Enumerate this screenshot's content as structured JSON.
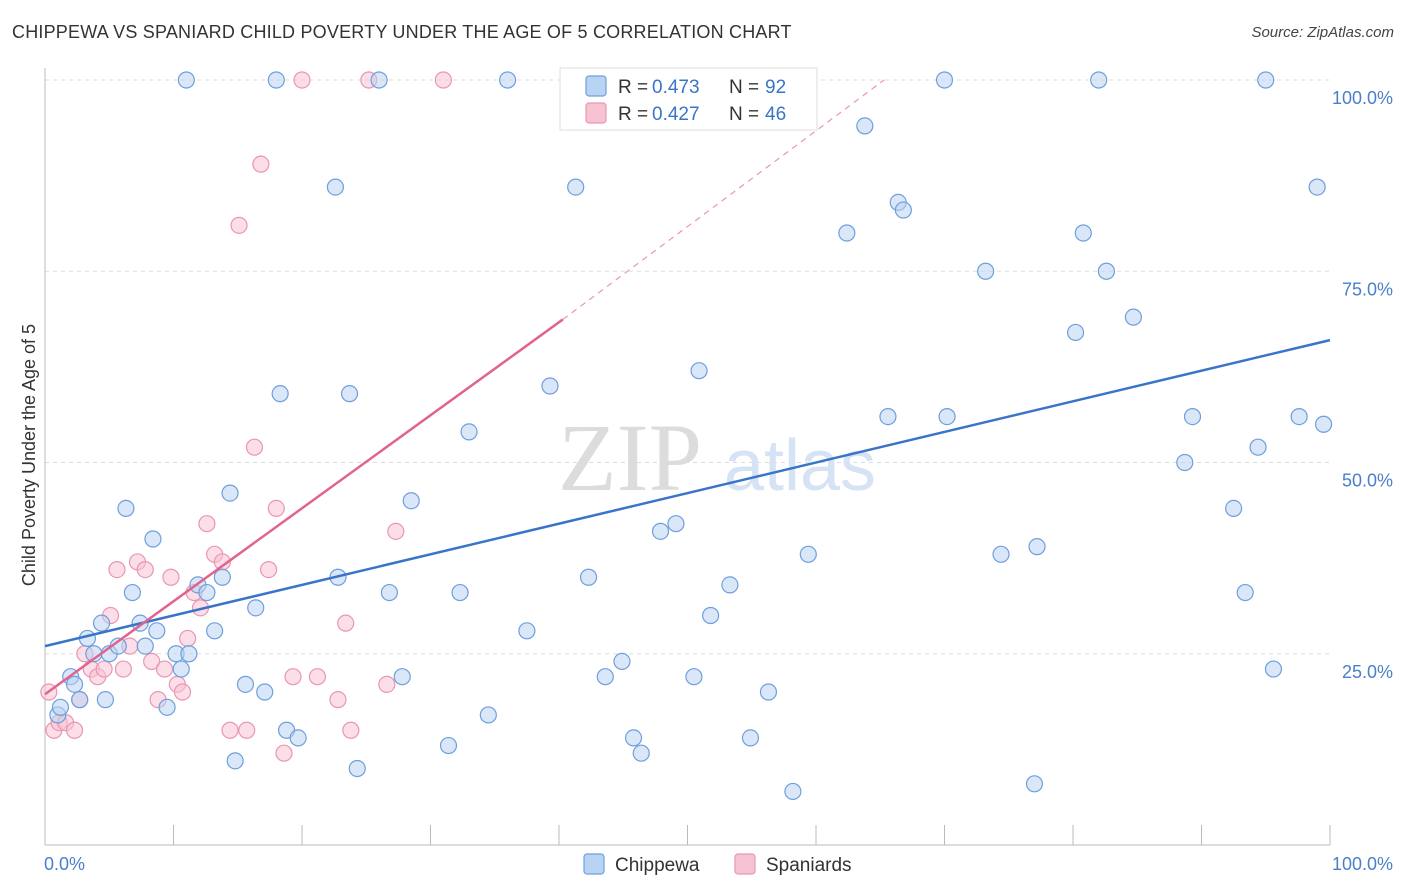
{
  "title": "CHIPPEWA VS SPANIARD CHILD POVERTY UNDER THE AGE OF 5 CORRELATION CHART",
  "source": "Source: ZipAtlas.com",
  "watermark": {
    "zip": "ZIP",
    "atlas": "atlas"
  },
  "legend": {
    "rows": [
      {
        "r_label": "R = ",
        "r_value": "0.473",
        "n_label": "N = ",
        "n_value": "92"
      },
      {
        "r_label": "R = ",
        "r_value": "0.427",
        "n_label": "N = ",
        "n_value": "46"
      }
    ]
  },
  "colors": {
    "chippewa_fill": "#b9d3f2",
    "chippewa_stroke": "#6e9fdc",
    "chippewa_line": "#3a74c9",
    "spaniards_fill": "#f7c3d3",
    "spaniards_stroke": "#e996b2",
    "spaniards_line": "#e0648f",
    "grid": "#dddddd",
    "tick_text": "#4a7fc9"
  },
  "chart_data": {
    "type": "scatter",
    "title": "CHIPPEWA VS SPANIARD CHILD POVERTY UNDER THE AGE OF 5 CORRELATION CHART",
    "xlabel": "",
    "ylabel": "Child Poverty Under the Age of 5",
    "xlim": [
      0,
      100
    ],
    "ylim": [
      0,
      100
    ],
    "x_tick_labels": [
      "0.0%",
      "100.0%"
    ],
    "y_tick_labels": [
      "25.0%",
      "50.0%",
      "75.0%",
      "100.0%"
    ],
    "y_ticks": [
      25,
      50,
      75,
      100
    ],
    "grid": true,
    "legend_position": "top-center",
    "series": [
      {
        "name": "Chippewa",
        "R": 0.473,
        "N": 92,
        "trend": {
          "x": [
            0,
            100
          ],
          "y": [
            26,
            66
          ]
        },
        "points": [
          [
            1,
            17
          ],
          [
            1.2,
            18
          ],
          [
            2,
            22
          ],
          [
            2.3,
            21
          ],
          [
            2.7,
            19
          ],
          [
            3.3,
            27
          ],
          [
            3.8,
            25
          ],
          [
            4.4,
            29
          ],
          [
            4.7,
            19
          ],
          [
            5,
            25
          ],
          [
            5.7,
            26
          ],
          [
            6.3,
            44
          ],
          [
            6.8,
            33
          ],
          [
            7.4,
            29
          ],
          [
            7.8,
            26
          ],
          [
            8.4,
            40
          ],
          [
            8.7,
            28
          ],
          [
            9.5,
            18
          ],
          [
            10.2,
            25
          ],
          [
            10.6,
            23
          ],
          [
            11.2,
            25
          ],
          [
            11.9,
            34
          ],
          [
            12.6,
            33
          ],
          [
            13.2,
            28
          ],
          [
            13.8,
            35
          ],
          [
            14.4,
            46
          ],
          [
            14.8,
            11
          ],
          [
            15.6,
            21
          ],
          [
            16.4,
            31
          ],
          [
            17.1,
            20
          ],
          [
            18.3,
            59
          ],
          [
            18.8,
            15
          ],
          [
            19.7,
            14
          ],
          [
            22.6,
            86
          ],
          [
            22.8,
            35
          ],
          [
            23.7,
            59
          ],
          [
            24.3,
            10
          ],
          [
            26.8,
            33
          ],
          [
            27.8,
            22
          ],
          [
            28.5,
            45
          ],
          [
            31.4,
            13
          ],
          [
            32.3,
            33
          ],
          [
            33,
            54
          ],
          [
            34.5,
            17
          ],
          [
            37.5,
            28
          ],
          [
            39.3,
            60
          ],
          [
            41.3,
            86
          ],
          [
            42.3,
            35
          ],
          [
            43.6,
            22
          ],
          [
            44.9,
            24
          ],
          [
            45.8,
            14
          ],
          [
            46.4,
            12
          ],
          [
            47.9,
            41
          ],
          [
            49.1,
            42
          ],
          [
            50.5,
            22
          ],
          [
            50.9,
            62
          ],
          [
            51.8,
            30
          ],
          [
            53.3,
            34
          ],
          [
            54.9,
            14
          ],
          [
            56.3,
            20
          ],
          [
            58.2,
            7
          ],
          [
            59.4,
            38
          ],
          [
            62.4,
            80
          ],
          [
            63.8,
            94
          ],
          [
            65.6,
            56
          ],
          [
            66.4,
            84
          ],
          [
            66.8,
            83
          ],
          [
            70.2,
            56
          ],
          [
            73.2,
            75
          ],
          [
            74.4,
            38
          ],
          [
            77,
            8
          ],
          [
            77.2,
            39
          ],
          [
            80.2,
            67
          ],
          [
            80.8,
            80
          ],
          [
            82.6,
            75
          ],
          [
            84.7,
            69
          ],
          [
            88.7,
            50
          ],
          [
            89.3,
            56
          ],
          [
            92.5,
            44
          ],
          [
            93.4,
            33
          ],
          [
            94.4,
            52
          ],
          [
            95.6,
            23
          ],
          [
            97.6,
            56
          ],
          [
            99,
            86
          ],
          [
            99.5,
            55
          ],
          [
            11,
            100
          ],
          [
            18,
            100
          ],
          [
            26,
            100
          ],
          [
            36,
            100
          ],
          [
            70,
            100
          ],
          [
            82,
            100
          ],
          [
            95,
            100
          ]
        ]
      },
      {
        "name": "Spaniards",
        "R": 0.427,
        "N": 46,
        "trend": {
          "x": [
            0,
            40.3
          ],
          "y": [
            19.7,
            68.7
          ]
        },
        "trend_dashed": {
          "x": [
            40.3,
            65.3
          ],
          "y": [
            68.7,
            100
          ]
        },
        "points": [
          [
            0.3,
            20
          ],
          [
            0.7,
            15
          ],
          [
            1.1,
            16
          ],
          [
            1.6,
            16
          ],
          [
            2.3,
            15
          ],
          [
            2.7,
            19
          ],
          [
            3.1,
            25
          ],
          [
            3.6,
            23
          ],
          [
            4.1,
            22
          ],
          [
            4.6,
            23
          ],
          [
            5.1,
            30
          ],
          [
            5.6,
            36
          ],
          [
            6.1,
            23
          ],
          [
            6.6,
            26
          ],
          [
            7.2,
            37
          ],
          [
            7.8,
            36
          ],
          [
            8.3,
            24
          ],
          [
            8.8,
            19
          ],
          [
            9.3,
            23
          ],
          [
            9.8,
            35
          ],
          [
            10.3,
            21
          ],
          [
            10.7,
            20
          ],
          [
            11.1,
            27
          ],
          [
            11.6,
            33
          ],
          [
            12.1,
            31
          ],
          [
            12.6,
            42
          ],
          [
            13.2,
            38
          ],
          [
            13.8,
            37
          ],
          [
            14.4,
            15
          ],
          [
            15.1,
            81
          ],
          [
            15.7,
            15
          ],
          [
            16.3,
            52
          ],
          [
            16.8,
            89
          ],
          [
            17.4,
            36
          ],
          [
            18,
            44
          ],
          [
            18.6,
            12
          ],
          [
            19.3,
            22
          ],
          [
            20,
            100
          ],
          [
            21.2,
            22
          ],
          [
            22.8,
            19
          ],
          [
            23.4,
            29
          ],
          [
            23.8,
            15
          ],
          [
            25.2,
            100
          ],
          [
            26.6,
            21
          ],
          [
            27.3,
            41
          ],
          [
            31,
            100
          ]
        ]
      }
    ]
  },
  "bottom_legend": [
    "Chippewa",
    "Spaniards"
  ]
}
